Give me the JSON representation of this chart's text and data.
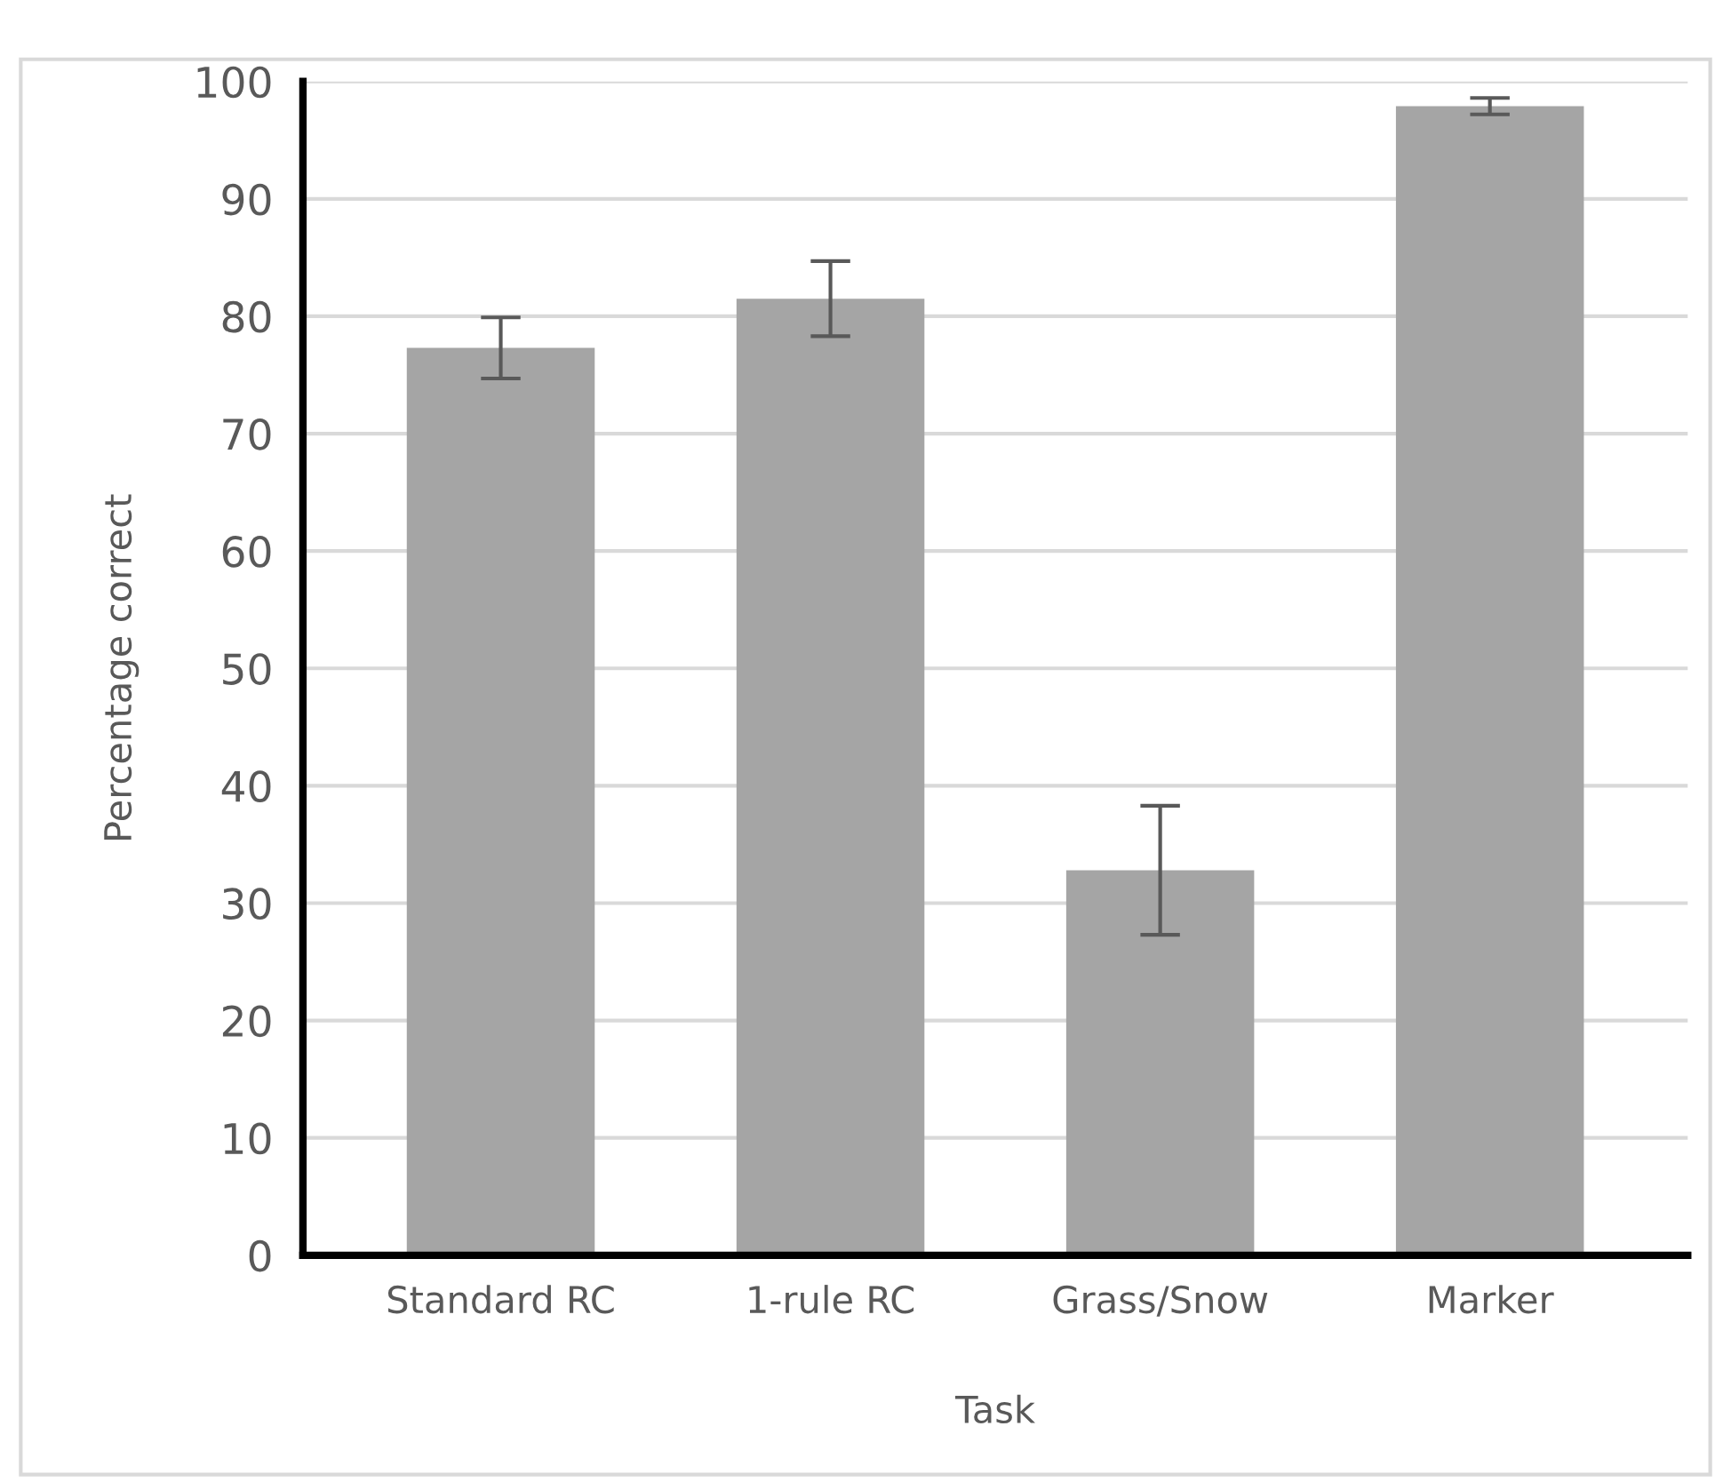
{
  "chart_data": {
    "type": "bar",
    "xlabel": "Task",
    "ylabel": "Percentage correct",
    "categories": [
      "Standard RC",
      "1-rule RC",
      "Grass/Snow",
      "Marker"
    ],
    "values": [
      77.3,
      81.5,
      32.8,
      97.9
    ],
    "errors": [
      2.6,
      3.2,
      5.5,
      0.7
    ],
    "color": "#a5a5a5",
    "ylim": [
      0,
      100
    ],
    "yticks": [
      0,
      10,
      20,
      30,
      40,
      50,
      60,
      70,
      80,
      90,
      100
    ],
    "grid": "y"
  }
}
